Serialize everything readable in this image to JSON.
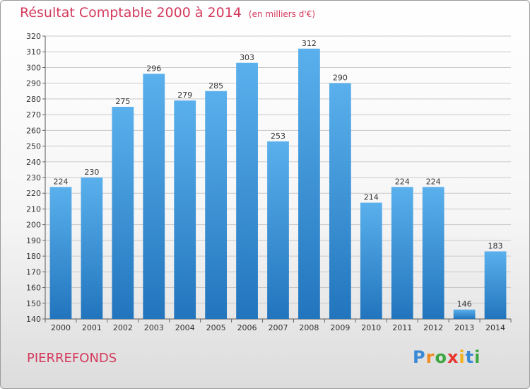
{
  "title": "Résultat Comptable 2000 à 2014",
  "subtitle": "(en milliers d'€)",
  "commune": "PIERREFONDS",
  "logo": {
    "text": "Proxiti",
    "letters": [
      "P",
      "r",
      "o",
      "x",
      "i",
      "t",
      "i"
    ],
    "colors": [
      "#3a8ad6",
      "#f28a1e",
      "#3ca640",
      "#e8352e",
      "#f2b21e",
      "#3a8ad6",
      "#3ca640"
    ]
  },
  "colors": {
    "bar_top": "#5ab0ec",
    "bar_bottom": "#2275bd",
    "text": "#d43a5c",
    "grid": "#c9c9c9"
  },
  "chart_data": {
    "type": "bar",
    "categories": [
      "2000",
      "2001",
      "2002",
      "2003",
      "2004",
      "2005",
      "2006",
      "2007",
      "2008",
      "2009",
      "2010",
      "2011",
      "2012",
      "2013",
      "2014"
    ],
    "values": [
      224,
      230,
      275,
      296,
      279,
      285,
      303,
      253,
      312,
      290,
      214,
      224,
      224,
      146,
      183
    ],
    "ylim": [
      140,
      320
    ],
    "yticks": [
      140,
      150,
      160,
      170,
      180,
      190,
      200,
      210,
      220,
      230,
      240,
      250,
      260,
      270,
      280,
      290,
      300,
      310,
      320
    ],
    "title": "Résultat Comptable 2000 à 2014",
    "xlabel": "",
    "ylabel": "",
    "grid": true
  }
}
